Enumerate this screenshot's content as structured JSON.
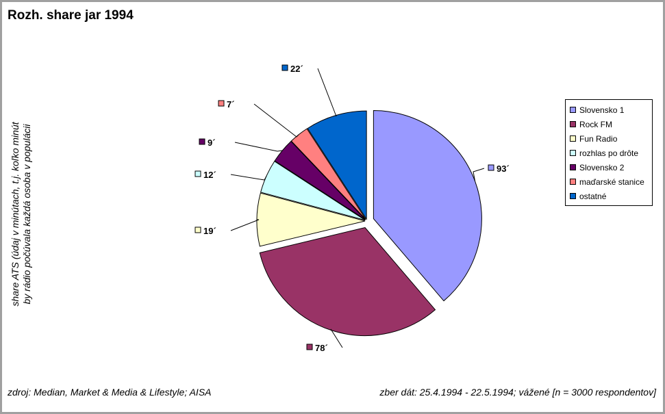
{
  "chart_data": {
    "type": "pie",
    "title": "Rozh. share jar 1994",
    "ylabel_lines": [
      "share ATS (údaj v minútach, t.j. koľko minút",
      "by rádio počúvala každá osoba v populácii"
    ],
    "source": "zdroj: Median, Market & Media & Lifestyle; AISA",
    "collection": "zber dát: 25.4.1994 - 22.5.1994; vážené [n = 3000 respondentov]",
    "legend_position": "right",
    "slices": [
      {
        "name": "Slovensko 1",
        "value": 93,
        "label": "93´",
        "color": "#9999ff"
      },
      {
        "name": "Rock FM",
        "value": 78,
        "label": "78´",
        "color": "#993366"
      },
      {
        "name": "Fun Radio",
        "value": 19,
        "label": "19´",
        "color": "#ffffcc"
      },
      {
        "name": "rozhlas po drôte",
        "value": 12,
        "label": "12´",
        "color": "#ccffff"
      },
      {
        "name": "Slovensko 2",
        "value": 9,
        "label": "9´",
        "color": "#660066"
      },
      {
        "name": "maďarské stanice",
        "value": 7,
        "label": "7´",
        "color": "#ff8080"
      },
      {
        "name": "ostatné",
        "value": 22,
        "label": "22´",
        "color": "#0066cc"
      }
    ]
  }
}
